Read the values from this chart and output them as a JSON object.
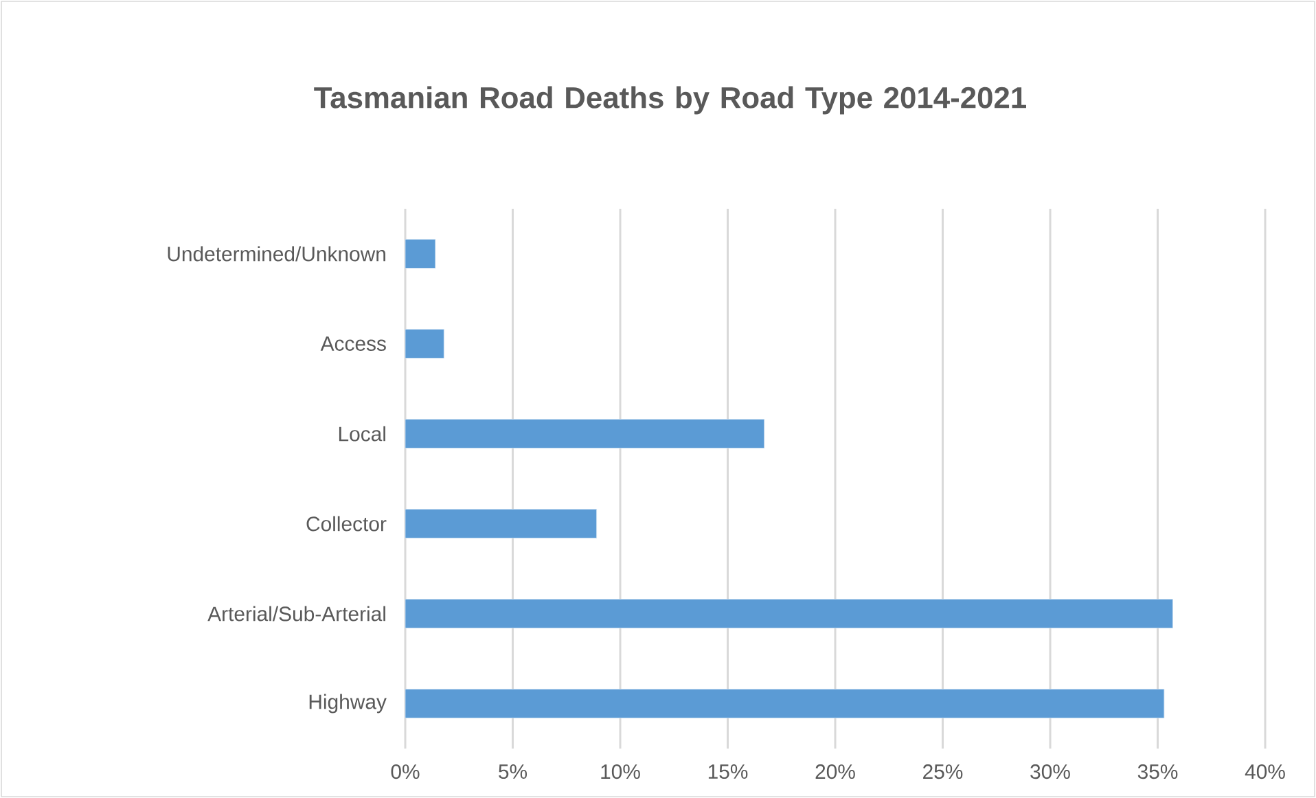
{
  "chart_data": {
    "type": "bar",
    "orientation": "horizontal",
    "title": "Tasmanian Road Deaths by Road Type 2014-2021",
    "categories": [
      "Undetermined/Unknown",
      "Access",
      "Local",
      "Collector",
      "Arterial/Sub-Arterial",
      "Highway"
    ],
    "values": [
      1.4,
      1.8,
      16.7,
      8.9,
      35.7,
      35.3
    ],
    "color": "#5b9bd5",
    "xlim": [
      0,
      40
    ],
    "xticks": [
      {
        "value": 0,
        "label": "0%"
      },
      {
        "value": 5,
        "label": "5%"
      },
      {
        "value": 10,
        "label": "10%"
      },
      {
        "value": 15,
        "label": "15%"
      },
      {
        "value": 20,
        "label": "20%"
      },
      {
        "value": 25,
        "label": "25%"
      },
      {
        "value": 30,
        "label": "30%"
      },
      {
        "value": 35,
        "label": "35%"
      },
      {
        "value": 40,
        "label": "40%"
      }
    ],
    "grid": "x"
  }
}
